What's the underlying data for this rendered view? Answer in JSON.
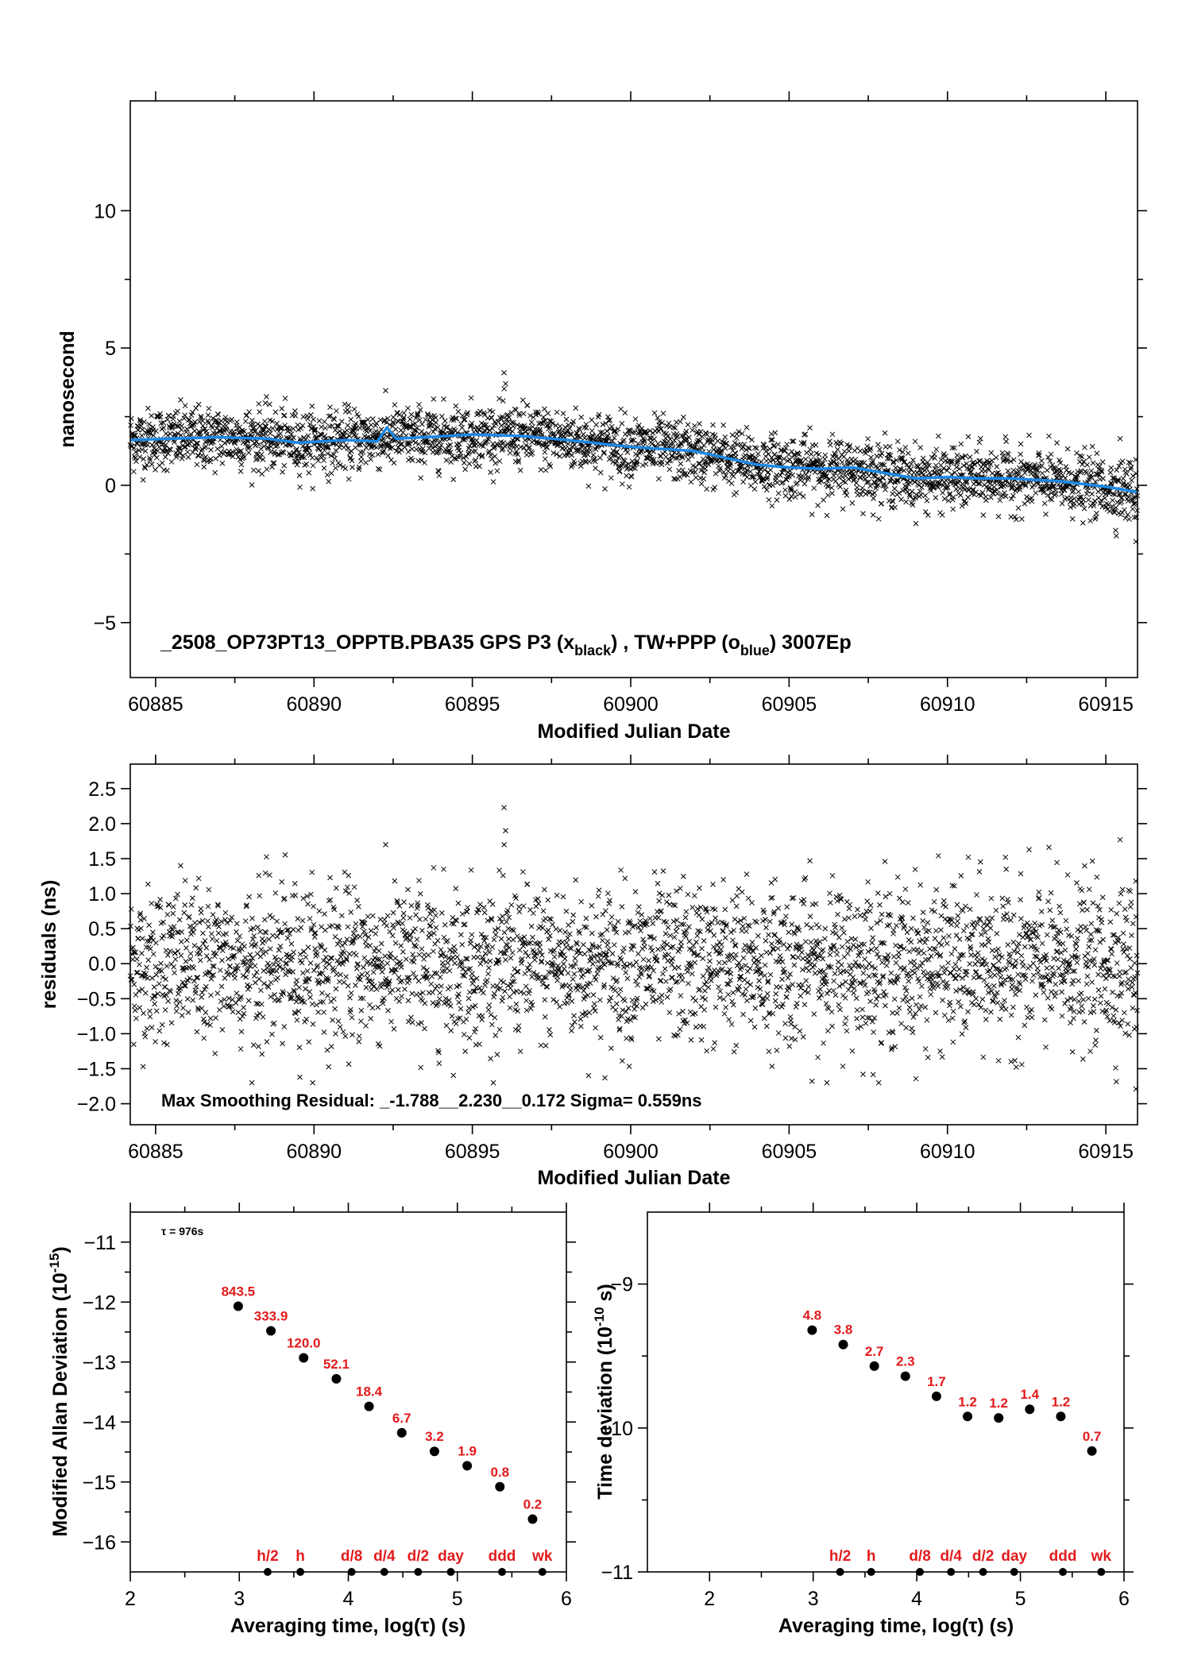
{
  "chart_data": [
    {
      "type": "scatter",
      "title": "_2508_OP73PT13_OPPTB.PBA35     GPS P3 (x",
      "title_sub1": "black",
      "title_mid": ") ,  TW+PPP (o",
      "title_sub2": "blue",
      "title_end": ")  3007Ep",
      "xlabel": "Modified Julian Date",
      "ylabel": "nanosecond",
      "xlim": [
        60884.2,
        60916.0
      ],
      "ylim": [
        -7.0,
        14.0
      ],
      "xticks": [
        60885,
        60890,
        60895,
        60900,
        60905,
        60910,
        60915
      ],
      "xtick_labels": [
        "60885",
        "60890",
        "60895",
        "60900",
        "60905",
        "60910",
        "60915"
      ],
      "yticks": [
        -5,
        0,
        5,
        10
      ],
      "ytick_labels": [
        "−5",
        "0",
        "5",
        "10"
      ],
      "series": [
        {
          "marker": "x",
          "color": "#000000",
          "x_start": 60884.2,
          "x_end": 60916.0,
          "n_points": 2900,
          "trend": [
            [
              60884.2,
              1.65
            ],
            [
              60885.5,
              1.7
            ],
            [
              60887,
              1.75
            ],
            [
              60888.5,
              1.7
            ],
            [
              60889.5,
              1.55
            ],
            [
              60891,
              1.65
            ],
            [
              60892,
              1.75
            ],
            [
              60893.5,
              1.75
            ],
            [
              60895,
              1.85
            ],
            [
              60896.5,
              1.8
            ],
            [
              60898,
              1.65
            ],
            [
              60900,
              1.4
            ],
            [
              60902,
              1.2
            ],
            [
              60904,
              0.75
            ],
            [
              60906,
              0.6
            ],
            [
              60907,
              0.6
            ],
            [
              60908,
              0.45
            ],
            [
              60909,
              0.25
            ],
            [
              60910,
              0.25
            ],
            [
              60912,
              0.25
            ],
            [
              60913.5,
              0.1
            ],
            [
              60916.0,
              -0.25
            ]
          ],
          "noise_sd": 0.56,
          "outliers": [
            [
              60896.0,
              4.1
            ],
            [
              60896.05,
              3.7
            ],
            [
              60915.45,
              1.7
            ],
            [
              60915.95,
              -2.05
            ]
          ]
        },
        {
          "marker": "line",
          "color": "#1e88e5",
          "points": [
            [
              60884.2,
              1.65
            ],
            [
              60885.5,
              1.7
            ],
            [
              60887,
              1.75
            ],
            [
              60888.5,
              1.7
            ],
            [
              60889.5,
              1.55
            ],
            [
              60891,
              1.65
            ],
            [
              60892,
              1.6
            ],
            [
              60892.3,
              2.1
            ],
            [
              60892.6,
              1.7
            ],
            [
              60893.5,
              1.75
            ],
            [
              60895,
              1.85
            ],
            [
              60896.5,
              1.8
            ],
            [
              60898,
              1.65
            ],
            [
              60900,
              1.4
            ],
            [
              60902,
              1.25
            ],
            [
              60903,
              1.0
            ],
            [
              60904,
              0.75
            ],
            [
              60905,
              0.65
            ],
            [
              60906,
              0.6
            ],
            [
              60907,
              0.65
            ],
            [
              60908,
              0.45
            ],
            [
              60909,
              0.25
            ],
            [
              60910,
              0.3
            ],
            [
              60911,
              0.25
            ],
            [
              60912,
              0.25
            ],
            [
              60913.5,
              0.15
            ],
            [
              60915,
              -0.05
            ],
            [
              60916.0,
              -0.25
            ]
          ]
        }
      ]
    },
    {
      "type": "scatter",
      "xlabel": "Modified Julian Date",
      "ylabel": "residuals (ns)",
      "annotation": "Max Smoothing Residual: _-1.788__2.230__0.172  Sigma= 0.559ns",
      "xlim": [
        60884.2,
        60916.0
      ],
      "ylim": [
        -2.3,
        2.85
      ],
      "xticks": [
        60885,
        60890,
        60895,
        60900,
        60905,
        60910,
        60915
      ],
      "xtick_labels": [
        "60885",
        "60890",
        "60895",
        "60900",
        "60905",
        "60910",
        "60915"
      ],
      "yticks": [
        -2.0,
        -1.5,
        -1.0,
        -0.5,
        0.0,
        0.5,
        1.0,
        1.5,
        2.0,
        2.5
      ],
      "ytick_labels": [
        "−2.0",
        "−1.5",
        "−1.0",
        "−0.5",
        "0.0",
        "0.5",
        "1.0",
        "1.5",
        "2.0",
        "2.5"
      ],
      "series": [
        {
          "marker": "x",
          "color": "#000000",
          "x_start": 60884.2,
          "x_end": 60916.0,
          "n_points": 2900,
          "noise_sd": 0.559,
          "min": -1.788,
          "max": 2.23,
          "outliers": [
            [
              60896.0,
              2.23
            ],
            [
              60896.05,
              1.9
            ],
            [
              60915.45,
              1.77
            ],
            [
              60915.95,
              -1.79
            ]
          ]
        }
      ]
    },
    {
      "type": "scatter",
      "xlabel": "Averaging time, log(τ) (s)",
      "ylabel": "Modified Allan Deviation (10",
      "ylabel_sup": "-15",
      "ylabel_end": ")",
      "note": "τ = 976s",
      "xlim": [
        2.0,
        6.0
      ],
      "ylim": [
        -16.5,
        -10.5
      ],
      "xticks": [
        2,
        3,
        4,
        5,
        6
      ],
      "xtick_labels": [
        "2",
        "3",
        "4",
        "5",
        "6"
      ],
      "yticks": [
        -16,
        -15,
        -14,
        -13,
        -12,
        -11
      ],
      "ytick_labels": [
        "−16",
        "−15",
        "−14",
        "−13",
        "−12",
        "−11"
      ],
      "points": [
        {
          "x": 2.99,
          "y": -12.07,
          "label": "843.5"
        },
        {
          "x": 3.29,
          "y": -12.48,
          "label": "333.9"
        },
        {
          "x": 3.59,
          "y": -12.93,
          "label": "120.0"
        },
        {
          "x": 3.89,
          "y": -13.28,
          "label": "52.1"
        },
        {
          "x": 4.19,
          "y": -13.74,
          "label": "18.4"
        },
        {
          "x": 4.49,
          "y": -14.18,
          "label": "6.7"
        },
        {
          "x": 4.79,
          "y": -14.49,
          "label": "3.2"
        },
        {
          "x": 5.09,
          "y": -14.73,
          "label": "1.9"
        },
        {
          "x": 5.39,
          "y": -15.08,
          "label": "0.8"
        },
        {
          "x": 5.69,
          "y": -15.62,
          "label": "0.2"
        }
      ],
      "markers": [
        {
          "x": 3.26,
          "label": "h/2"
        },
        {
          "x": 3.56,
          "label": "h"
        },
        {
          "x": 4.03,
          "label": "d/8"
        },
        {
          "x": 4.33,
          "label": "d/4"
        },
        {
          "x": 4.64,
          "label": "d/2"
        },
        {
          "x": 4.94,
          "label": "day"
        },
        {
          "x": 5.41,
          "label": "ddd"
        },
        {
          "x": 5.78,
          "label": "wk"
        }
      ]
    },
    {
      "type": "scatter",
      "xlabel": "Averaging time, log(τ) (s)",
      "ylabel": "Time deviation (10",
      "ylabel_sup": "-10",
      "ylabel_end": " s)",
      "xlim": [
        1.4,
        6.0
      ],
      "ylim": [
        -11.0,
        -8.5
      ],
      "xticks": [
        2,
        3,
        4,
        5,
        6
      ],
      "xtick_labels": [
        "2",
        "3",
        "4",
        "5",
        "6"
      ],
      "yticks": [
        -11,
        -10,
        -9
      ],
      "ytick_labels": [
        "−11",
        "−10",
        "−9"
      ],
      "points": [
        {
          "x": 2.99,
          "y": -9.32,
          "label": "4.8"
        },
        {
          "x": 3.29,
          "y": -9.42,
          "label": "3.8"
        },
        {
          "x": 3.59,
          "y": -9.57,
          "label": "2.7"
        },
        {
          "x": 3.89,
          "y": -9.64,
          "label": "2.3"
        },
        {
          "x": 4.19,
          "y": -9.78,
          "label": "1.7"
        },
        {
          "x": 4.49,
          "y": -9.92,
          "label": "1.2"
        },
        {
          "x": 4.79,
          "y": -9.93,
          "label": "1.2"
        },
        {
          "x": 5.09,
          "y": -9.87,
          "label": "1.4"
        },
        {
          "x": 5.39,
          "y": -9.92,
          "label": "1.2"
        },
        {
          "x": 5.69,
          "y": -10.16,
          "label": "0.7"
        }
      ],
      "markers": [
        {
          "x": 3.26,
          "label": "h/2"
        },
        {
          "x": 3.56,
          "label": "h"
        },
        {
          "x": 4.03,
          "label": "d/8"
        },
        {
          "x": 4.33,
          "label": "d/4"
        },
        {
          "x": 4.64,
          "label": "d/2"
        },
        {
          "x": 4.94,
          "label": "day"
        },
        {
          "x": 5.41,
          "label": "ddd"
        },
        {
          "x": 5.78,
          "label": "wk"
        }
      ]
    }
  ]
}
